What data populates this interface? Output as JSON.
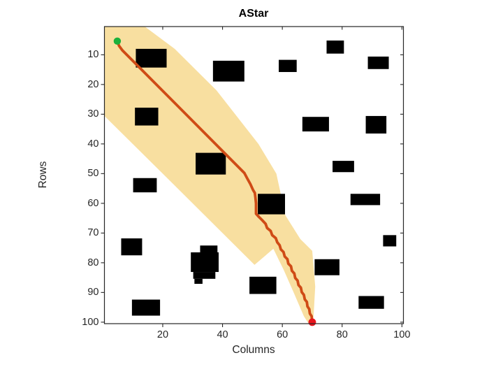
{
  "title": "AStar",
  "axes": {
    "xlabel": "Columns",
    "ylabel": "Rows",
    "x_ticks": [
      20,
      40,
      60,
      80,
      100
    ],
    "y_ticks": [
      10,
      20,
      30,
      40,
      50,
      60,
      70,
      80,
      90,
      100
    ]
  },
  "colors": {
    "explored_region": "#F8DFA0",
    "path": "#CF4B16",
    "start_marker": "#1CB13C",
    "goal_marker": "#E8141C",
    "obstacle": "#000000",
    "axis": "#262626"
  },
  "chart_data": {
    "type": "line",
    "title": "AStar",
    "xlabel": "Columns",
    "ylabel": "Rows",
    "xlim": [
      0.5,
      100.5
    ],
    "ylim": [
      0.5,
      100.5
    ],
    "y_axis_reversed": true,
    "grid": false,
    "legend": "none",
    "grid_size": [
      100,
      100
    ],
    "start": {
      "col": 4.8,
      "row": 5.4
    },
    "goal": {
      "col": 70,
      "row": 100
    },
    "path_points": [
      [
        4.8,
        5.4
      ],
      [
        5.4,
        7.0
      ],
      [
        6.5,
        8.5
      ],
      [
        47.3,
        49.8
      ],
      [
        48.2,
        51.5
      ],
      [
        49.3,
        53.5
      ],
      [
        50.2,
        55.5
      ],
      [
        50.8,
        56.5
      ],
      [
        51.0,
        58.0
      ],
      [
        51.2,
        60.0
      ],
      [
        51.2,
        63.5
      ],
      [
        52.2,
        64.6
      ],
      [
        53.2,
        65.6
      ],
      [
        54.4,
        66.9
      ],
      [
        54.9,
        68.3
      ],
      [
        56.1,
        69.3
      ],
      [
        56.6,
        70.7
      ],
      [
        57.8,
        71.7
      ],
      [
        58.3,
        73.1
      ],
      [
        59.1,
        74.1
      ],
      [
        59.5,
        75.5
      ],
      [
        60.4,
        76.4
      ],
      [
        60.8,
        77.9
      ],
      [
        61.7,
        78.8
      ],
      [
        62.0,
        80.3
      ],
      [
        62.9,
        81.2
      ],
      [
        63.2,
        82.7
      ],
      [
        64.0,
        83.6
      ],
      [
        64.3,
        85.1
      ],
      [
        65.1,
        86.0
      ],
      [
        65.4,
        87.5
      ],
      [
        66.2,
        88.4
      ],
      [
        66.5,
        89.9
      ],
      [
        67.2,
        90.8
      ],
      [
        67.5,
        92.3
      ],
      [
        68.2,
        93.2
      ],
      [
        68.4,
        94.7
      ],
      [
        69.0,
        95.6
      ],
      [
        69.2,
        97.1
      ],
      [
        69.8,
        98.0
      ],
      [
        69.9,
        99.0
      ],
      [
        70.0,
        100.0
      ]
    ],
    "explored_region_polygon": [
      [
        0.5,
        0.5
      ],
      [
        14,
        0.5
      ],
      [
        24,
        8
      ],
      [
        38,
        22
      ],
      [
        52,
        40
      ],
      [
        58,
        50
      ],
      [
        61,
        64
      ],
      [
        66,
        72
      ],
      [
        70,
        76
      ],
      [
        71,
        88
      ],
      [
        70.5,
        97
      ],
      [
        70.2,
        100.5
      ],
      [
        68.8,
        100.5
      ],
      [
        67.2,
        98
      ],
      [
        64,
        90.5
      ],
      [
        60.5,
        82.5
      ],
      [
        57,
        75.3
      ],
      [
        50.7,
        80.7
      ],
      [
        20.7,
        50.7
      ],
      [
        0.5,
        30.6
      ]
    ],
    "obstacles": [
      [
        11.0,
        8.0,
        10.3,
        6.3
      ],
      [
        36.8,
        12.0,
        10.5,
        7.0
      ],
      [
        58.8,
        11.7,
        6.0,
        4.1
      ],
      [
        74.8,
        5.2,
        5.8,
        4.4
      ],
      [
        88.6,
        10.6,
        7.0,
        4.2
      ],
      [
        10.7,
        27.8,
        7.8,
        6.0
      ],
      [
        66.7,
        30.9,
        8.9,
        4.9
      ],
      [
        87.9,
        30.6,
        6.9,
        5.9
      ],
      [
        31.0,
        43.0,
        10.1,
        7.3
      ],
      [
        10.1,
        51.5,
        7.9,
        4.8
      ],
      [
        76.8,
        45.7,
        7.2,
        3.8
      ],
      [
        51.8,
        56.8,
        9.1,
        6.9
      ],
      [
        82.8,
        56.8,
        9.9,
        3.8
      ],
      [
        6.1,
        71.8,
        7.0,
        5.7
      ],
      [
        32.5,
        74.2,
        5.8,
        2.5
      ],
      [
        29.4,
        76.5,
        9.3,
        6.6
      ],
      [
        30.2,
        83.1,
        7.4,
        2.3
      ],
      [
        30.6,
        85.4,
        2.7,
        1.7
      ],
      [
        93.7,
        70.7,
        4.4,
        3.8
      ],
      [
        70.8,
        78.8,
        8.3,
        5.4
      ],
      [
        49.0,
        84.7,
        9.0,
        5.8
      ],
      [
        85.5,
        91.2,
        8.5,
        4.3
      ],
      [
        9.7,
        92.4,
        9.4,
        5.4
      ]
    ]
  }
}
